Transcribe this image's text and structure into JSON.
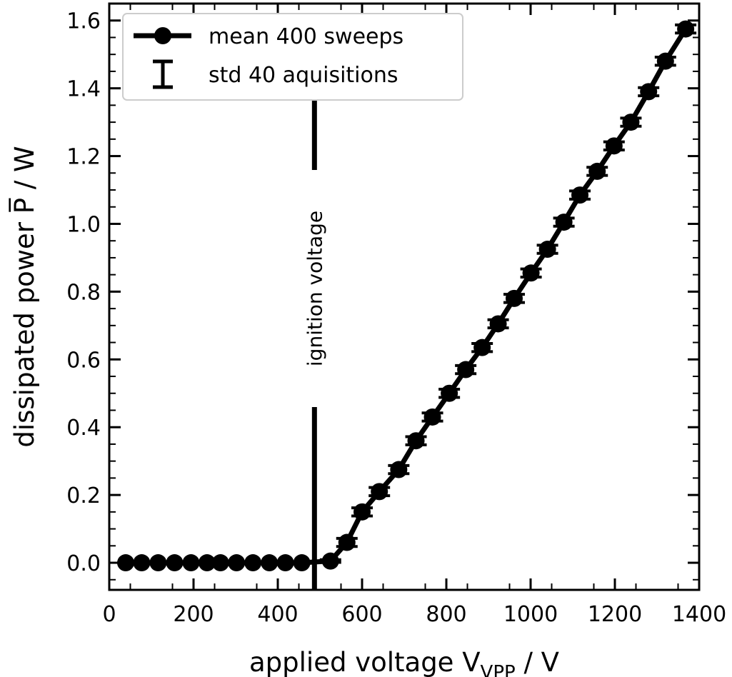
{
  "chart_data": {
    "type": "line",
    "xlabel": "applied voltage V",
    "xlabel_sub": "VPP",
    "xlabel_suffix": " / V",
    "ylabel": "dissipated power P̅ / W",
    "xlim": [
      0,
      1400
    ],
    "ylim": [
      -0.08,
      1.65
    ],
    "xticks": [
      0,
      200,
      400,
      600,
      800,
      1000,
      1200,
      1400
    ],
    "yticks": [
      0.0,
      0.2,
      0.4,
      0.6,
      0.8,
      1.0,
      1.2,
      1.4,
      1.6
    ],
    "ytick_labels": [
      "0.0",
      "0.2",
      "0.4",
      "0.6",
      "0.8",
      "1.0",
      "1.2",
      "1.4",
      "1.6"
    ],
    "legend": {
      "position": "upper-left",
      "entries": [
        "mean 400 sweeps",
        "std 40 aquisitions"
      ]
    },
    "annotation": {
      "text": "ignition voltage",
      "x": 487
    },
    "series": [
      {
        "name": "mean 400 sweeps",
        "x": [
          39,
          77,
          116,
          155,
          194,
          232,
          264,
          302,
          341,
          380,
          418,
          457,
          525,
          564,
          600,
          641,
          687,
          728,
          767,
          807,
          846,
          885,
          923,
          961,
          1001,
          1040,
          1079,
          1117,
          1158,
          1198,
          1238,
          1280,
          1320,
          1368
        ],
        "y": [
          0.0,
          0.0,
          0.0,
          0.0,
          0.0,
          0.0,
          0.0,
          0.0,
          0.0,
          0.0,
          0.0,
          0.0,
          0.005,
          0.06,
          0.15,
          0.21,
          0.275,
          0.36,
          0.43,
          0.5,
          0.57,
          0.635,
          0.705,
          0.78,
          0.855,
          0.925,
          1.005,
          1.085,
          1.155,
          1.23,
          1.3,
          1.39,
          1.48,
          1.575
        ],
        "std": [
          0,
          0,
          0,
          0,
          0,
          0,
          0,
          0,
          0,
          0,
          0,
          0,
          0.004,
          0.012,
          0.012,
          0.012,
          0.012,
          0.012,
          0.012,
          0.012,
          0.012,
          0.012,
          0.012,
          0.012,
          0.012,
          0.012,
          0.012,
          0.012,
          0.012,
          0.012,
          0.012,
          0.012,
          0.012,
          0.012
        ]
      }
    ]
  }
}
